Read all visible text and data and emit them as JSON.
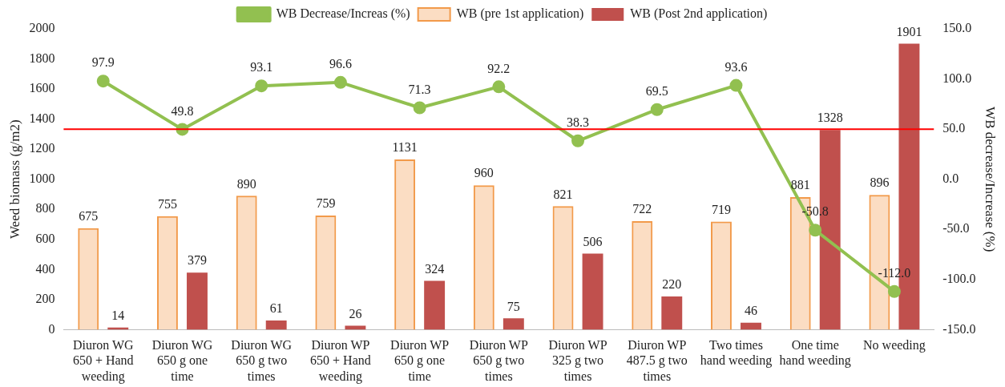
{
  "chart_data": {
    "type": "bar",
    "ylabel": "Weed biomass (g/m2)",
    "y2label": "WB decrease/Increase (%)",
    "categories": [
      "Diuron WG 650 + Hand weeding",
      "Diuron WG 650 g one time",
      "Diuron WG 650 g two times",
      "Diuron WP 650 + Hand weeding",
      "Diuron WP 650 g one time",
      "Diuron WP 650 g two times",
      "Diuron WP 325 g two times",
      "Diuron WP 487.5 g two times",
      "Two times hand weeding",
      "One time hand weeding",
      "No weeding"
    ],
    "series": [
      {
        "name": "WB (pre 1st application)",
        "color": "#f29a4a",
        "values": [
          675,
          755,
          890,
          759,
          1131,
          960,
          821,
          722,
          719,
          881,
          896
        ]
      },
      {
        "name": "WB (Post 2nd application)",
        "color": "#c0504d",
        "values": [
          14,
          379,
          61,
          26,
          324,
          75,
          506,
          220,
          46,
          1328,
          1901
        ]
      },
      {
        "name": "WB Decrease/Increas (%)",
        "type": "line",
        "axis": "y2",
        "color": "#92c050",
        "values": [
          97.9,
          49.8,
          93.1,
          96.6,
          71.3,
          92.2,
          38.3,
          69.5,
          93.6,
          -50.8,
          -112.0
        ],
        "value_labels": [
          "97.9",
          "49.8",
          "93.1",
          "96.6",
          "71.3",
          "92.2",
          "38.3",
          "69.5",
          "93.6",
          "-50.8",
          "-112.0"
        ]
      }
    ],
    "ylim": [
      0,
      2000
    ],
    "yticks": [
      0,
      200,
      400,
      600,
      800,
      1000,
      1200,
      1400,
      1600,
      1800,
      2000
    ],
    "y2lim": [
      -150,
      150
    ],
    "y2ticks": [
      {
        "value": -150,
        "label": "-150.0"
      },
      {
        "value": -100,
        "label": "-100.0"
      },
      {
        "value": -50,
        "label": "-50.0"
      },
      {
        "value": 0,
        "label": "0.0"
      },
      {
        "value": 50,
        "label": "50.0"
      },
      {
        "value": 100,
        "label": "100.0"
      },
      {
        "value": 150,
        "label": "150.0"
      }
    ],
    "ref_lines": [
      {
        "axis": "y2",
        "value": 50,
        "color": "#ff0000"
      }
    ],
    "data_labels": true,
    "legend": "top",
    "grid": false,
    "marker": "circle",
    "line_style": "solid"
  }
}
